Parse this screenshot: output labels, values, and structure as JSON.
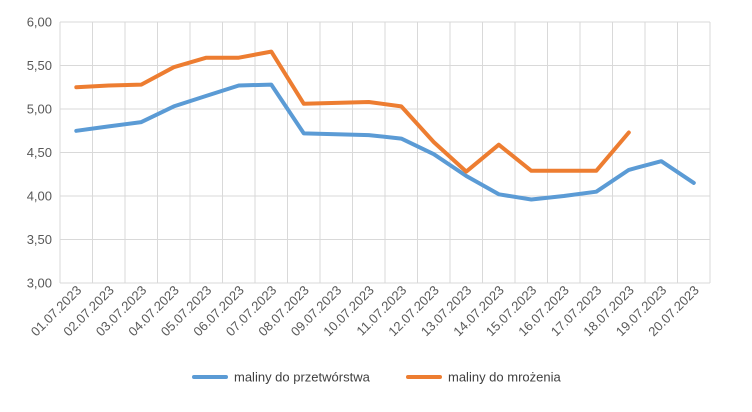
{
  "chart_data": {
    "type": "line",
    "categories": [
      "01.07.2023",
      "02.07.2023",
      "03.07.2023",
      "04.07.2023",
      "05.07.2023",
      "06.07.2023",
      "07.07.2023",
      "08.07.2023",
      "09.07.2023",
      "10.07.2023",
      "11.07.2023",
      "12.07.2023",
      "13.07.2023",
      "14.07.2023",
      "15.07.2023",
      "16.07.2023",
      "17.07.2023",
      "18.07.2023",
      "19.07.2023",
      "20.07.2023"
    ],
    "ylim": [
      3.0,
      6.0
    ],
    "yticks": [
      "3,00",
      "3,50",
      "4,00",
      "4,50",
      "5,00",
      "5,50",
      "6,00"
    ],
    "grid": true,
    "legend_position": "bottom",
    "series": [
      {
        "name": "maliny do przetwórstwa",
        "color": "#5b9bd5",
        "values": [
          4.75,
          4.8,
          4.85,
          5.03,
          5.15,
          5.27,
          5.28,
          4.72,
          4.71,
          4.7,
          4.66,
          4.48,
          4.23,
          4.02,
          3.96,
          4.0,
          4.05,
          4.3,
          4.4,
          4.15
        ]
      },
      {
        "name": "maliny do mrożenia",
        "color": "#ed7d31",
        "values": [
          5.25,
          5.27,
          5.28,
          5.48,
          5.59,
          5.59,
          5.66,
          5.06,
          5.07,
          5.08,
          5.03,
          4.62,
          4.28,
          4.59,
          4.29,
          4.29,
          4.29,
          4.73,
          null,
          null
        ]
      }
    ]
  }
}
